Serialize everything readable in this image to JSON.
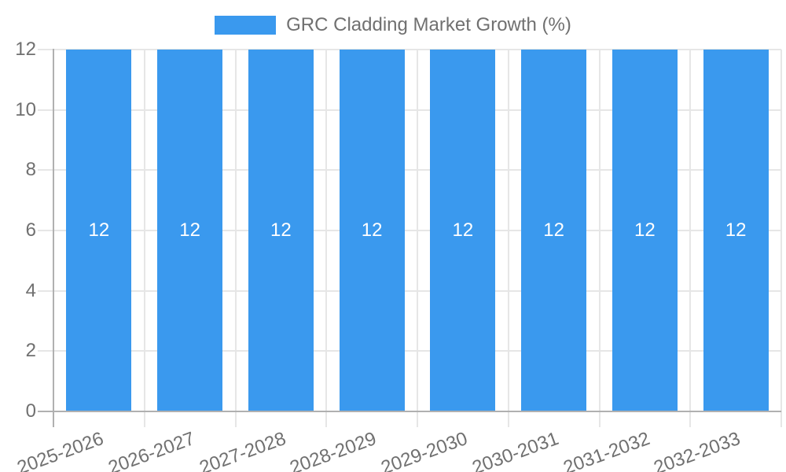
{
  "chart_data": {
    "type": "bar",
    "title": "GRC Cladding Market Growth (%)",
    "categories": [
      "2025-2026",
      "2026-2027",
      "2027-2028",
      "2028-2029",
      "2029-2030",
      "2030-2031",
      "2031-2032",
      "2032-2033"
    ],
    "series": [
      {
        "name": "GRC Cladding Market Growth (%)",
        "values": [
          12,
          12,
          12,
          12,
          12,
          12,
          12,
          12
        ]
      }
    ],
    "value_labels": [
      "12",
      "12",
      "12",
      "12",
      "12",
      "12",
      "12",
      "12"
    ],
    "xlabel": "",
    "ylabel": "",
    "ylim": [
      0,
      12
    ],
    "yticks": [
      0,
      2,
      4,
      6,
      8,
      10,
      12
    ],
    "grid": true,
    "legend_position": "top",
    "x_label_rotation_deg": -20,
    "colors": {
      "bar": "#3a99ee",
      "grid": "#e6e6e6",
      "axis": "#b0b0b0",
      "text": "#707070",
      "value_label": "#ffffff",
      "background": "#ffffff"
    }
  }
}
